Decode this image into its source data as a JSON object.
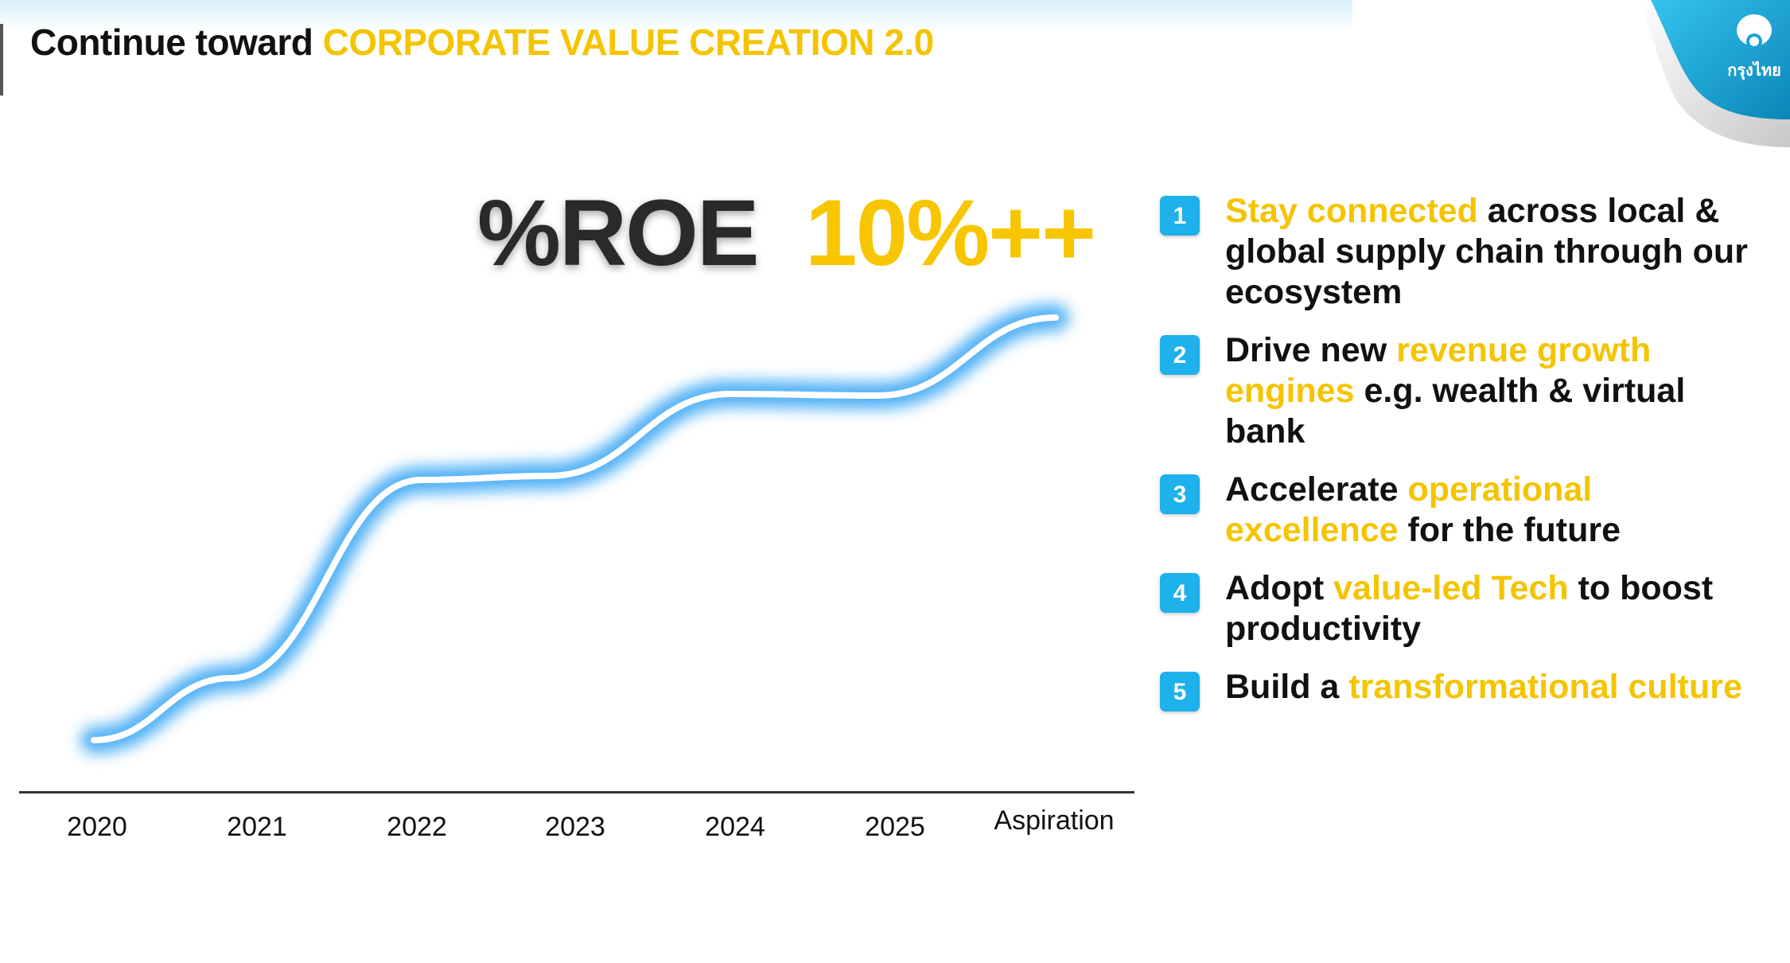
{
  "header": {
    "title_prefix": "Continue toward",
    "title_highlight": "CORPORATE VALUE CREATION 2.0"
  },
  "logo": {
    "text": "กรุงไทย",
    "icon": "garuda-logo-icon"
  },
  "chart_data": {
    "type": "line",
    "title": "%ROE",
    "annotation": "10%++",
    "categories": [
      "2020",
      "2021",
      "2022",
      "2023",
      "2024",
      "2025",
      "Aspiration"
    ],
    "trend": "rising",
    "grid": false,
    "line_color": "#ffffff",
    "glow_color": "#3ea8f5"
  },
  "initiatives": [
    {
      "number": "1",
      "segments": [
        {
          "text": "Stay connected",
          "hl": true
        },
        {
          "text": " across local & global supply chain through our ecosystem",
          "hl": false
        }
      ]
    },
    {
      "number": "2",
      "segments": [
        {
          "text": "Drive new ",
          "hl": false
        },
        {
          "text": "revenue growth engines",
          "hl": true
        },
        {
          "text": " e.g. wealth & virtual bank",
          "hl": false
        }
      ]
    },
    {
      "number": "3",
      "segments": [
        {
          "text": "Accelerate ",
          "hl": false
        },
        {
          "text": "operational excellence",
          "hl": true
        },
        {
          "text": " for the future",
          "hl": false
        }
      ]
    },
    {
      "number": "4",
      "segments": [
        {
          "text": "Adopt ",
          "hl": false
        },
        {
          "text": "value-led Tech",
          "hl": true
        },
        {
          "text": " to boost productivity",
          "hl": false
        }
      ]
    },
    {
      "number": "5",
      "segments": [
        {
          "text": "Build a ",
          "hl": false
        },
        {
          "text": "transformational culture",
          "hl": true
        }
      ]
    }
  ],
  "colors": {
    "accent_yellow": "#f5c400",
    "badge_blue": "#1eb1ec",
    "brand_blue": "#1ba5d8"
  }
}
